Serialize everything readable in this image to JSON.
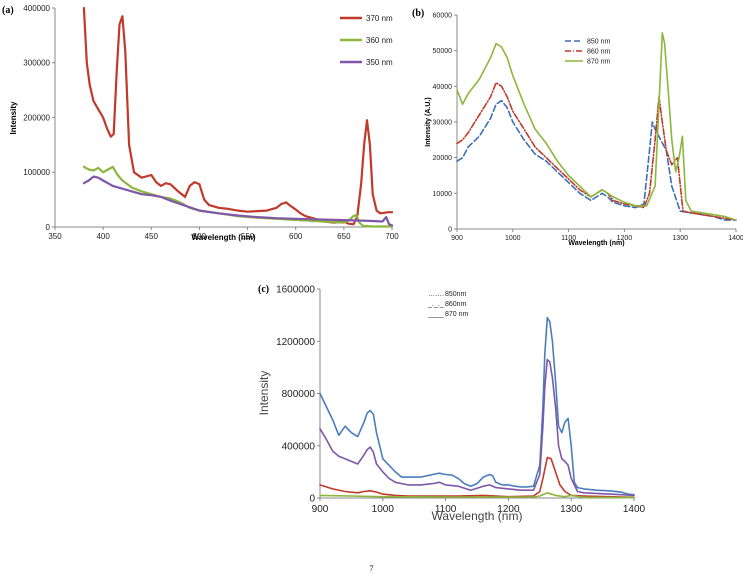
{
  "page_number": "7",
  "chart_data": [
    {
      "panel": "(a)",
      "type": "line",
      "title": "",
      "xlabel": "Wavelength (nm)",
      "ylabel": "Intensity",
      "xlim": [
        350,
        700
      ],
      "ylim": [
        0,
        400000
      ],
      "xticks": [
        350,
        400,
        450,
        500,
        550,
        600,
        650,
        700
      ],
      "yticks": [
        0,
        100000,
        200000,
        300000,
        400000
      ],
      "grid": false,
      "legend": "top-right",
      "series": [
        {
          "name": "370 nm",
          "color": "#c0392b",
          "dash": "solid",
          "x": [
            380,
            383,
            386,
            390,
            395,
            400,
            404,
            408,
            411,
            414,
            417,
            420,
            423,
            427,
            432,
            440,
            450,
            455,
            460,
            465,
            470,
            478,
            485,
            490,
            495,
            500,
            505,
            510,
            520,
            530,
            540,
            550,
            560,
            570,
            580,
            585,
            590,
            595,
            600,
            605,
            610,
            620,
            630,
            640,
            650,
            655,
            660,
            664,
            668,
            671,
            674,
            677,
            680,
            684,
            688,
            692,
            696,
            700
          ],
          "y": [
            400000,
            300000,
            260000,
            230000,
            215000,
            200000,
            180000,
            165000,
            170000,
            280000,
            370000,
            385000,
            320000,
            150000,
            100000,
            90000,
            95000,
            82000,
            75000,
            80000,
            78000,
            65000,
            55000,
            75000,
            82000,
            78000,
            50000,
            40000,
            35000,
            33000,
            30000,
            28000,
            29000,
            30000,
            35000,
            42000,
            45000,
            38000,
            32000,
            25000,
            20000,
            15000,
            10000,
            8000,
            10000,
            6000,
            5000,
            20000,
            80000,
            150000,
            195000,
            150000,
            60000,
            30000,
            25000,
            26000,
            27000,
            27000
          ]
        },
        {
          "name": "360 nm",
          "color": "#8db63c",
          "dash": "solid",
          "x": [
            380,
            385,
            390,
            395,
            400,
            405,
            410,
            415,
            420,
            430,
            440,
            450,
            460,
            470,
            480,
            490,
            500,
            520,
            540,
            560,
            580,
            600,
            620,
            640,
            650,
            655,
            660,
            663,
            666,
            670,
            680,
            690,
            700
          ],
          "y": [
            110000,
            105000,
            103000,
            108000,
            100000,
            105000,
            110000,
            95000,
            85000,
            72000,
            65000,
            60000,
            55000,
            52000,
            45000,
            35000,
            30000,
            25000,
            20000,
            17000,
            15000,
            13000,
            11000,
            9000,
            8000,
            12000,
            20000,
            22000,
            8000,
            2000,
            1000,
            1000,
            1000
          ]
        },
        {
          "name": "350 nm",
          "color": "#7e57a8",
          "dash": "solid",
          "x": [
            380,
            385,
            390,
            395,
            400,
            410,
            420,
            430,
            440,
            450,
            460,
            470,
            480,
            490,
            500,
            520,
            540,
            560,
            580,
            600,
            620,
            640,
            660,
            680,
            690,
            694,
            697,
            700
          ],
          "y": [
            80000,
            85000,
            92000,
            90000,
            85000,
            75000,
            70000,
            65000,
            60000,
            58000,
            55000,
            48000,
            42000,
            36000,
            30000,
            25000,
            21000,
            18000,
            16000,
            15000,
            14000,
            13000,
            12000,
            11000,
            10000,
            18000,
            5000,
            3000
          ]
        }
      ]
    },
    {
      "panel": "(b)",
      "type": "line",
      "title": "",
      "xlabel": "Wavelength (nm)",
      "ylabel": "Intensity (A.U.)",
      "xlim": [
        900,
        1400
      ],
      "ylim": [
        0,
        60000
      ],
      "xticks": [
        900,
        1000,
        1100,
        1200,
        1300,
        1400
      ],
      "yticks": [
        0,
        10000,
        20000,
        30000,
        40000,
        50000,
        60000
      ],
      "grid": false,
      "legend": "top-center",
      "series": [
        {
          "name": "850 nm",
          "color": "#3b6fb6",
          "dash": "6,3",
          "x": [
            900,
            910,
            920,
            940,
            960,
            970,
            980,
            990,
            1000,
            1020,
            1040,
            1060,
            1080,
            1100,
            1120,
            1140,
            1160,
            1170,
            1180,
            1200,
            1220,
            1235,
            1245,
            1250,
            1255,
            1265,
            1275,
            1285,
            1300,
            1320,
            1340,
            1360,
            1380,
            1400
          ],
          "y": [
            19000,
            20000,
            23000,
            26000,
            31000,
            35000,
            36000,
            34000,
            30000,
            25000,
            21000,
            19000,
            16000,
            13000,
            10000,
            8000,
            10000,
            9000,
            7500,
            6500,
            6000,
            7000,
            22000,
            30000,
            28000,
            25000,
            22000,
            12000,
            5000,
            4500,
            4000,
            3500,
            2500,
            2500
          ]
        },
        {
          "name": "860 nm",
          "color": "#c0392b",
          "dash": "6,2,1,2",
          "x": [
            900,
            910,
            920,
            940,
            960,
            970,
            980,
            990,
            1000,
            1020,
            1040,
            1060,
            1080,
            1100,
            1120,
            1140,
            1160,
            1170,
            1180,
            1200,
            1220,
            1235,
            1245,
            1255,
            1262,
            1268,
            1275,
            1285,
            1295,
            1305,
            1320,
            1340,
            1360,
            1380,
            1400
          ],
          "y": [
            24000,
            25000,
            27000,
            32000,
            37000,
            41000,
            40000,
            37000,
            33000,
            28000,
            23000,
            20000,
            17000,
            14000,
            11000,
            9000,
            11000,
            10000,
            8000,
            7000,
            6500,
            6000,
            10000,
            25000,
            37000,
            30000,
            22000,
            18000,
            20000,
            5000,
            4500,
            4000,
            3500,
            3000,
            2500
          ]
        },
        {
          "name": "870 nm",
          "color": "#8db63c",
          "dash": "solid",
          "x": [
            900,
            910,
            920,
            940,
            960,
            970,
            980,
            990,
            1000,
            1020,
            1040,
            1060,
            1080,
            1100,
            1120,
            1140,
            1160,
            1170,
            1180,
            1200,
            1220,
            1240,
            1255,
            1262,
            1268,
            1272,
            1278,
            1285,
            1292,
            1298,
            1304,
            1310,
            1320,
            1340,
            1360,
            1380,
            1400
          ],
          "y": [
            39000,
            35000,
            38000,
            42000,
            48000,
            52000,
            51000,
            48000,
            43000,
            35000,
            28000,
            24000,
            19000,
            15000,
            12000,
            9000,
            11000,
            10000,
            9000,
            7500,
            6500,
            6500,
            12000,
            35000,
            55000,
            52000,
            40000,
            25000,
            16000,
            20000,
            26000,
            8000,
            5000,
            4500,
            4000,
            3500,
            2500
          ]
        }
      ]
    },
    {
      "panel": "(c)",
      "type": "line",
      "title": "",
      "xlabel": "Wavelength (nm)",
      "ylabel": "Intensity",
      "xlim": [
        900,
        1400
      ],
      "ylim": [
        0,
        1600000
      ],
      "xticks": [
        900,
        1000,
        1100,
        1200,
        1300,
        1400
      ],
      "yticks": [
        0,
        400000,
        800000,
        1200000,
        1600000
      ],
      "grid": false,
      "legend": "top-center",
      "legend_labels": [
        {
          "marker": "…….",
          "label": "850nm"
        },
        {
          "marker": "_._._",
          "label": "860nm"
        },
        {
          "marker": "____",
          "label": "870 nm"
        }
      ],
      "series": [
        {
          "color": "#4a7ebb",
          "dash": "solid",
          "x": [
            900,
            910,
            920,
            930,
            940,
            950,
            960,
            970,
            975,
            980,
            985,
            990,
            995,
            1000,
            1010,
            1020,
            1030,
            1040,
            1060,
            1070,
            1080,
            1090,
            1100,
            1110,
            1120,
            1130,
            1140,
            1150,
            1160,
            1170,
            1175,
            1180,
            1190,
            1200,
            1210,
            1220,
            1230,
            1240,
            1250,
            1255,
            1258,
            1262,
            1266,
            1270,
            1275,
            1280,
            1285,
            1290,
            1295,
            1300,
            1305,
            1310,
            1320,
            1340,
            1360,
            1380,
            1390,
            1400
          ],
          "y": [
            800000,
            700000,
            600000,
            480000,
            550000,
            500000,
            470000,
            580000,
            650000,
            670000,
            640000,
            500000,
            400000,
            300000,
            250000,
            200000,
            160000,
            160000,
            160000,
            170000,
            180000,
            190000,
            180000,
            175000,
            150000,
            110000,
            90000,
            110000,
            160000,
            180000,
            170000,
            120000,
            100000,
            100000,
            90000,
            85000,
            85000,
            90000,
            250000,
            700000,
            1100000,
            1380000,
            1350000,
            1200000,
            900000,
            550000,
            500000,
            580000,
            610000,
            400000,
            120000,
            80000,
            70000,
            60000,
            55000,
            45000,
            30000,
            25000
          ]
        },
        {
          "color": "#7e57a8",
          "dash": "solid",
          "x": [
            900,
            910,
            920,
            930,
            940,
            950,
            960,
            970,
            975,
            980,
            985,
            990,
            1000,
            1010,
            1020,
            1040,
            1060,
            1080,
            1090,
            1100,
            1120,
            1140,
            1160,
            1170,
            1180,
            1200,
            1220,
            1240,
            1250,
            1255,
            1258,
            1262,
            1266,
            1270,
            1275,
            1280,
            1285,
            1290,
            1295,
            1300,
            1310,
            1320,
            1340,
            1360,
            1380,
            1400
          ],
          "y": [
            530000,
            450000,
            360000,
            320000,
            300000,
            280000,
            260000,
            330000,
            370000,
            390000,
            350000,
            260000,
            200000,
            150000,
            120000,
            100000,
            100000,
            110000,
            120000,
            100000,
            90000,
            60000,
            90000,
            100000,
            80000,
            70000,
            60000,
            60000,
            180000,
            550000,
            850000,
            1060000,
            1040000,
            920000,
            700000,
            400000,
            300000,
            280000,
            250000,
            150000,
            50000,
            40000,
            35000,
            30000,
            25000,
            20000
          ]
        },
        {
          "color": "#c0392b",
          "dash": "solid",
          "x": [
            900,
            920,
            940,
            960,
            970,
            980,
            990,
            1000,
            1020,
            1040,
            1080,
            1120,
            1160,
            1200,
            1240,
            1250,
            1255,
            1262,
            1268,
            1275,
            1282,
            1290,
            1300,
            1320,
            1360,
            1400
          ],
          "y": [
            100000,
            70000,
            50000,
            40000,
            50000,
            55000,
            45000,
            30000,
            20000,
            15000,
            15000,
            15000,
            20000,
            10000,
            15000,
            50000,
            150000,
            310000,
            300000,
            200000,
            100000,
            50000,
            20000,
            15000,
            10000,
            5000
          ]
        },
        {
          "color": "#8db63c",
          "dash": "solid",
          "x": [
            900,
            950,
            1000,
            1100,
            1200,
            1240,
            1250,
            1262,
            1275,
            1290,
            1300,
            1320,
            1400
          ],
          "y": [
            20000,
            15000,
            10000,
            8000,
            7000,
            8000,
            15000,
            40000,
            20000,
            10000,
            20000,
            5000,
            3000
          ]
        }
      ]
    }
  ]
}
